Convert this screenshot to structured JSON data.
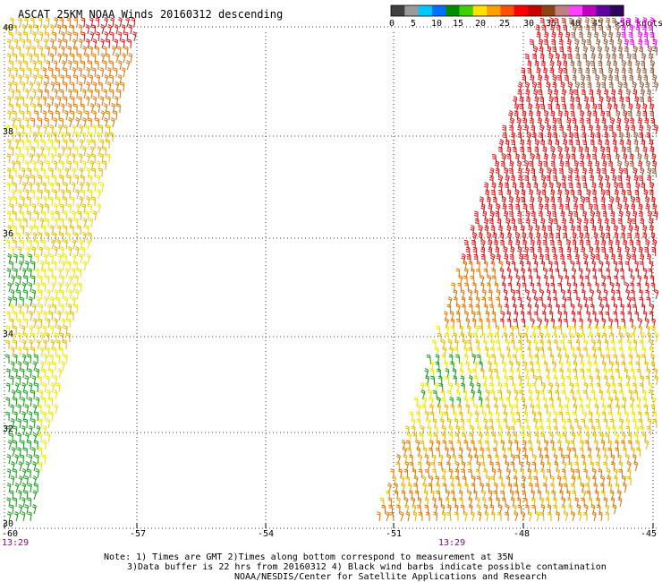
{
  "title": "ASCAT 25KM NOAA Winds 20160312 descending",
  "legend": {
    "labels": [
      "0",
      "5",
      "10",
      "15",
      "20",
      "25",
      "30",
      "35",
      "40",
      "45",
      ">50 knots"
    ],
    "colors": [
      "#404040",
      "#9a9a9a",
      "#00c8ff",
      "#0070ff",
      "#008c00",
      "#40d000",
      "#ffe000",
      "#ffa000",
      "#ff5000",
      "#ff0000",
      "#c80000",
      "#8b4513",
      "#c08080",
      "#ff40ff",
      "#c000c0",
      "#6000a0",
      "#300060"
    ]
  },
  "axes": {
    "lon_labels": [
      "-60",
      "-57",
      "-54",
      "-51",
      "-48",
      "-45"
    ],
    "lat_labels": [
      "40",
      "38",
      "36",
      "34",
      "32",
      "30"
    ]
  },
  "times": [
    "13:29",
    "13:29"
  ],
  "notes": [
    "Note: 1) Times are GMT 2)Times along bottom correspond to measurement at 35N",
    "3)Data buffer is 22 hrs from 20160312 4) Black wind barbs indicate possible contamination",
    "NOAA/NESDIS/Center for Satellite Applications and Research"
  ],
  "wind_colors": {
    "green": "#0a9a0a",
    "yellow": "#f0e000",
    "gold": "#e8b000",
    "orange": "#e07000",
    "red": "#d01010",
    "brown": "#8b5a3c",
    "magenta": "#e000e0"
  }
}
